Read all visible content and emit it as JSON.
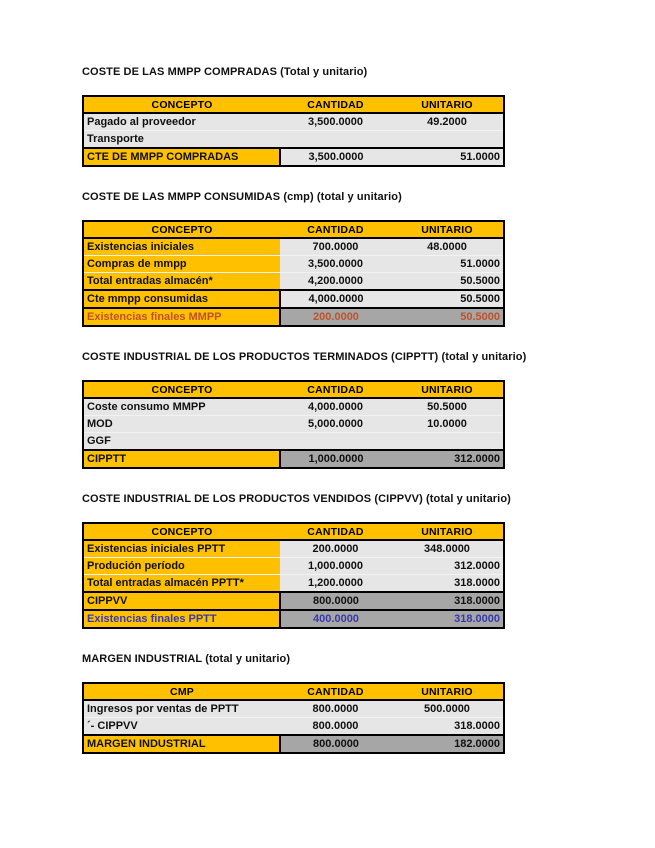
{
  "colors": {
    "header_orange": "#ffc000",
    "data_light_gray": "#e7e6e6",
    "total_dark_gray": "#a6a6a6",
    "final_red_text": "#c0522a",
    "final_blue_text": "#3939ae"
  },
  "sections": [
    {
      "title": "COSTE DE LAS MMPP COMPRADAS (Total y unitario)",
      "headers": [
        "CONCEPTO",
        "CANTIDAD",
        "UNITARIO"
      ],
      "rows": [
        {
          "label": "Pagado al proveedor",
          "cantidad": "3,500.0000",
          "unitario": "49.2000",
          "label_fill": "plain",
          "value_fill": "light",
          "ink": "black",
          "sep": false,
          "u_align": "center"
        },
        {
          "label": "Transporte",
          "cantidad": "",
          "unitario": "",
          "label_fill": "plain",
          "value_fill": "light",
          "ink": "black",
          "sep": false,
          "u_align": "center"
        },
        {
          "label": "CTE DE MMPP COMPRADAS",
          "cantidad": "3,500.0000",
          "unitario": "51.0000",
          "label_fill": "orange",
          "value_fill": "light",
          "ink": "black",
          "sep": true,
          "u_align": "right"
        }
      ]
    },
    {
      "title": "COSTE DE LAS MMPP CONSUMIDAS (cmp) (total y unitario)",
      "headers": [
        "CONCEPTO",
        "CANTIDAD",
        "UNITARIO"
      ],
      "rows": [
        {
          "label": "Existencias iniciales",
          "cantidad": "700.0000",
          "unitario": "48.0000",
          "label_fill": "orange",
          "value_fill": "light",
          "ink": "black",
          "sep": false,
          "u_align": "center"
        },
        {
          "label": "Compras de mmpp",
          "cantidad": "3,500.0000",
          "unitario": "51.0000",
          "label_fill": "orange",
          "value_fill": "light",
          "ink": "black",
          "sep": false,
          "u_align": "right"
        },
        {
          "label": "Total entradas almacén*",
          "cantidad": "4,200.0000",
          "unitario": "50.5000",
          "label_fill": "orange",
          "value_fill": "light",
          "ink": "black",
          "sep": false,
          "u_align": "right"
        },
        {
          "label": "Cte mmpp consumidas",
          "cantidad": "4,000.0000",
          "unitario": "50.5000",
          "label_fill": "orange",
          "value_fill": "light",
          "ink": "black",
          "sep": true,
          "u_align": "right"
        },
        {
          "label": "Existencias finales MMPP",
          "cantidad": "200.0000",
          "unitario": "50.5000",
          "label_fill": "orange",
          "value_fill": "dark",
          "ink": "red",
          "sep": true,
          "u_align": "right"
        }
      ]
    },
    {
      "title": "COSTE INDUSTRIAL DE LOS PRODUCTOS TERMINADOS (CIPPTT) (total y unitario)",
      "headers": [
        "CONCEPTO",
        "CANTIDAD",
        "UNITARIO"
      ],
      "rows": [
        {
          "label": "Coste consumo MMPP",
          "cantidad": "4,000.0000",
          "unitario": "50.5000",
          "label_fill": "plain",
          "value_fill": "light",
          "ink": "black",
          "sep": false,
          "u_align": "center"
        },
        {
          "label": "MOD",
          "cantidad": "5,000.0000",
          "unitario": "10.0000",
          "label_fill": "plain",
          "value_fill": "light",
          "ink": "black",
          "sep": false,
          "u_align": "center"
        },
        {
          "label": "GGF",
          "cantidad": "",
          "unitario": "",
          "label_fill": "plain",
          "value_fill": "light",
          "ink": "black",
          "sep": false,
          "u_align": "center"
        },
        {
          "label": "CIPPTT",
          "cantidad": "1,000.0000",
          "unitario": "312.0000",
          "label_fill": "orange",
          "value_fill": "dark",
          "ink": "black",
          "sep": true,
          "u_align": "right"
        }
      ]
    },
    {
      "title": "COSTE INDUSTRIAL DE LOS PRODUCTOS VENDIDOS (CIPPVV) (total y unitario)",
      "headers": [
        "CONCEPTO",
        "CANTIDAD",
        "UNITARIO"
      ],
      "rows": [
        {
          "label": "Existencias iniciales PPTT",
          "cantidad": "200.0000",
          "unitario": "348.0000",
          "label_fill": "orange",
          "value_fill": "light",
          "ink": "black",
          "sep": false,
          "u_align": "center"
        },
        {
          "label": "Produción período",
          "cantidad": "1,000.0000",
          "unitario": "312.0000",
          "label_fill": "orange",
          "value_fill": "light",
          "ink": "black",
          "sep": false,
          "u_align": "right"
        },
        {
          "label": "Total entradas almacén PPTT*",
          "cantidad": "1,200.0000",
          "unitario": "318.0000",
          "label_fill": "orange",
          "value_fill": "light",
          "ink": "black",
          "sep": false,
          "u_align": "right"
        },
        {
          "label": "CIPPVV",
          "cantidad": "800.0000",
          "unitario": "318.0000",
          "label_fill": "orange",
          "value_fill": "dark",
          "ink": "black",
          "sep": true,
          "u_align": "right"
        },
        {
          "label": "Existencias finales PPTT",
          "cantidad": "400.0000",
          "unitario": "318.0000",
          "label_fill": "orange",
          "value_fill": "dark",
          "ink": "blue",
          "sep": true,
          "u_align": "right"
        }
      ]
    },
    {
      "title": "MARGEN INDUSTRIAL (total y unitario)",
      "headers": [
        "CMP",
        "CANTIDAD",
        "UNITARIO"
      ],
      "rows": [
        {
          "label": "Ingresos por ventas de PPTT",
          "cantidad": "800.0000",
          "unitario": "500.0000",
          "label_fill": "plain",
          "value_fill": "light",
          "ink": "black",
          "sep": false,
          "u_align": "center"
        },
        {
          "label": "´- CIPPVV",
          "cantidad": "800.0000",
          "unitario": "318.0000",
          "label_fill": "plain",
          "value_fill": "light",
          "ink": "black",
          "sep": false,
          "u_align": "right"
        },
        {
          "label": "MARGEN INDUSTRIAL",
          "cantidad": "800.0000",
          "unitario": "182.0000",
          "label_fill": "orange",
          "value_fill": "dark",
          "ink": "black",
          "sep": true,
          "u_align": "right"
        }
      ]
    }
  ]
}
